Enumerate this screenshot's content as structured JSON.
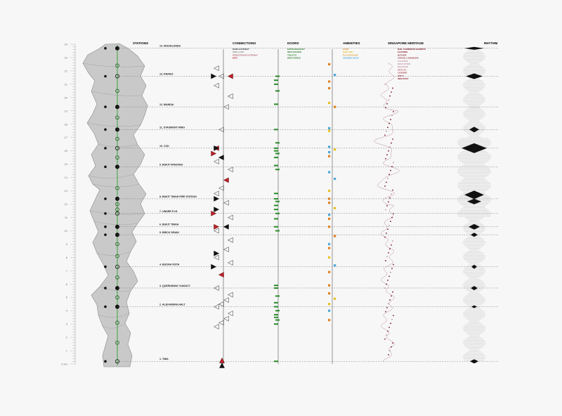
{
  "headers": {
    "stations": "STATIONS",
    "connections": "CONNECTIONS",
    "doors": "DOORS",
    "amenities": "AMENITIES",
    "heritage": "SINGAPORE HERITAGE",
    "rhythm": "RHYTHM"
  },
  "axis_ticks": [
    "24",
    "23",
    "22",
    "21",
    "20",
    "19",
    "18",
    "17",
    "16",
    "15",
    "14",
    "13",
    "12",
    "11",
    "10",
    "9",
    "8",
    "7",
    "6",
    "5",
    "4",
    "3",
    "2",
    "1",
    "0 km"
  ],
  "stations": [
    {
      "label": "14. WOODLANDS",
      "km": 23.7
    },
    {
      "label": "13. KRANJI",
      "km": 21.6
    },
    {
      "label": "12. MANDAI",
      "km": 19.3
    },
    {
      "label": "11. STAGMONT RING",
      "km": 17.6
    },
    {
      "label": "10. CCK",
      "km": 16.2
    },
    {
      "label": "9. BUKIT PANJANG",
      "km": 14.8
    },
    {
      "label": "8. BUKIT TIMAH FIRE STATION",
      "km": 12.4
    },
    {
      "label": "7. UNDER P.I.E.",
      "km": 11.3
    },
    {
      "label": "6. BUKIT TIMAH",
      "km": 10.3
    },
    {
      "label": "5. BRICK DRAIN",
      "km": 9.7
    },
    {
      "label": "4. BUONA VISTA",
      "km": 7.3
    },
    {
      "label": "3. QUEENSWAY VIADUCT",
      "km": 5.7
    },
    {
      "label": "2. ALEXANDRA HALT",
      "km": 4.3
    },
    {
      "label": "1. TMIA",
      "km": 0.2
    }
  ],
  "connections_legend": [
    {
      "label": "MAIN GATEWAY",
      "color": "#333333"
    },
    {
      "label": "SIDE GATE",
      "color": "#888888"
    },
    {
      "label": "PEDESTRIAN GATEWAY",
      "color": "#b06070"
    },
    {
      "label": "MTR",
      "color": "#c0202a"
    }
  ],
  "doors_legend": [
    {
      "label": "ENTRANCE/EXIT",
      "color": "#2a7a2a"
    },
    {
      "label": "INFO KIOSKS",
      "color": "#2a7a2a"
    },
    {
      "label": "TOILETS",
      "color": "#2a7a2a"
    },
    {
      "label": "BIKE PARKS",
      "color": "#2a7a2a"
    }
  ],
  "amenities_legend": [
    {
      "label": "CAFE",
      "color": "#e08020"
    },
    {
      "label": "SHELTER",
      "color": "#e8c020"
    },
    {
      "label": "PLAYGROUND",
      "color": "#e0a030"
    },
    {
      "label": "VIEWING DECK",
      "color": "#4aa8d8"
    }
  ],
  "heritage_legend": [
    {
      "label": "RAIL CORRIDOR EXHIBITS",
      "color": "#7a1020"
    },
    {
      "label": "HOUSING",
      "color": "#8a2030"
    },
    {
      "label": "NATURE",
      "color": "#8a3040"
    },
    {
      "label": "URBAN LANDMARK",
      "color": "#a04050"
    },
    {
      "label": "CULTURE",
      "color": "#c090a0"
    },
    {
      "label": "EDUCATION",
      "color": "#c090a0"
    },
    {
      "label": "RELIGION",
      "color": "#c090a0"
    },
    {
      "label": "HEALTH",
      "color": "#c05060"
    },
    {
      "label": "LEISURE",
      "color": "#a04050"
    },
    {
      "label": "WW II",
      "color": "#8a3040"
    },
    {
      "label": "INDUSTRY",
      "color": "#8a2030"
    }
  ],
  "colors": {
    "map_fill": "#c9c9c9",
    "rail_line": "#3aa83a",
    "door_green": "#2a8a2a",
    "mtr_red": "#c0202a"
  }
}
